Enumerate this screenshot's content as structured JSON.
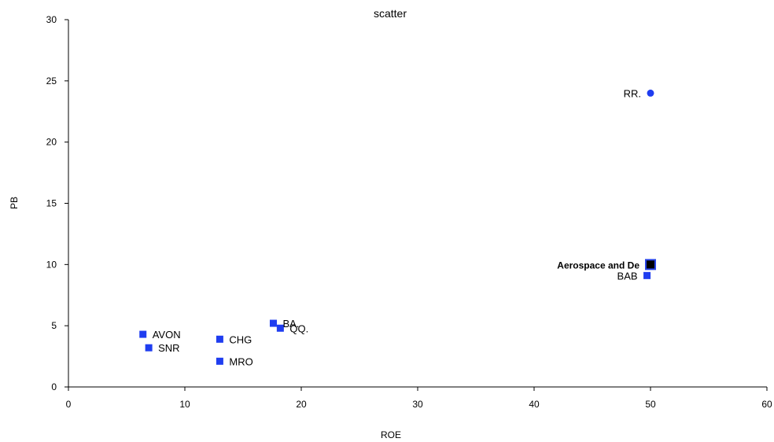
{
  "chart_data": {
    "type": "scatter",
    "title": "scatter",
    "xlabel": "ROE",
    "ylabel": "PB",
    "xlim": [
      0,
      60
    ],
    "ylim": [
      0,
      30
    ],
    "xticks": [
      0,
      10,
      20,
      30,
      40,
      50,
      60
    ],
    "yticks": [
      0,
      5,
      10,
      15,
      20,
      25,
      30
    ],
    "grid": false,
    "points": [
      {
        "label": "RR.",
        "x": 50.0,
        "y": 24.0,
        "marker": "circle",
        "color": "#1f3df0",
        "label_side": "left",
        "bold": false
      },
      {
        "label": "Aerospace and De",
        "x": 50.0,
        "y": 10.0,
        "marker": "square-large",
        "color": "#000000",
        "label_side": "left",
        "bold": true
      },
      {
        "label": "BAB",
        "x": 49.7,
        "y": 9.1,
        "marker": "square",
        "color": "#1f3df0",
        "label_side": "left",
        "bold": false
      },
      {
        "label": "BA.",
        "x": 17.6,
        "y": 5.2,
        "marker": "square",
        "color": "#1f3df0",
        "label_side": "right",
        "bold": false
      },
      {
        "label": "QQ.",
        "x": 18.2,
        "y": 4.8,
        "marker": "square",
        "color": "#1f3df0",
        "label_side": "right",
        "bold": false
      },
      {
        "label": "AVON",
        "x": 6.4,
        "y": 4.3,
        "marker": "square",
        "color": "#1f3df0",
        "label_side": "right",
        "bold": false
      },
      {
        "label": "SNR",
        "x": 6.9,
        "y": 3.2,
        "marker": "square",
        "color": "#1f3df0",
        "label_side": "right",
        "bold": false
      },
      {
        "label": "CHG",
        "x": 13.0,
        "y": 3.9,
        "marker": "square",
        "color": "#1f3df0",
        "label_side": "right",
        "bold": false
      },
      {
        "label": "MRO",
        "x": 13.0,
        "y": 2.1,
        "marker": "square",
        "color": "#1f3df0",
        "label_side": "right",
        "bold": false
      }
    ]
  }
}
